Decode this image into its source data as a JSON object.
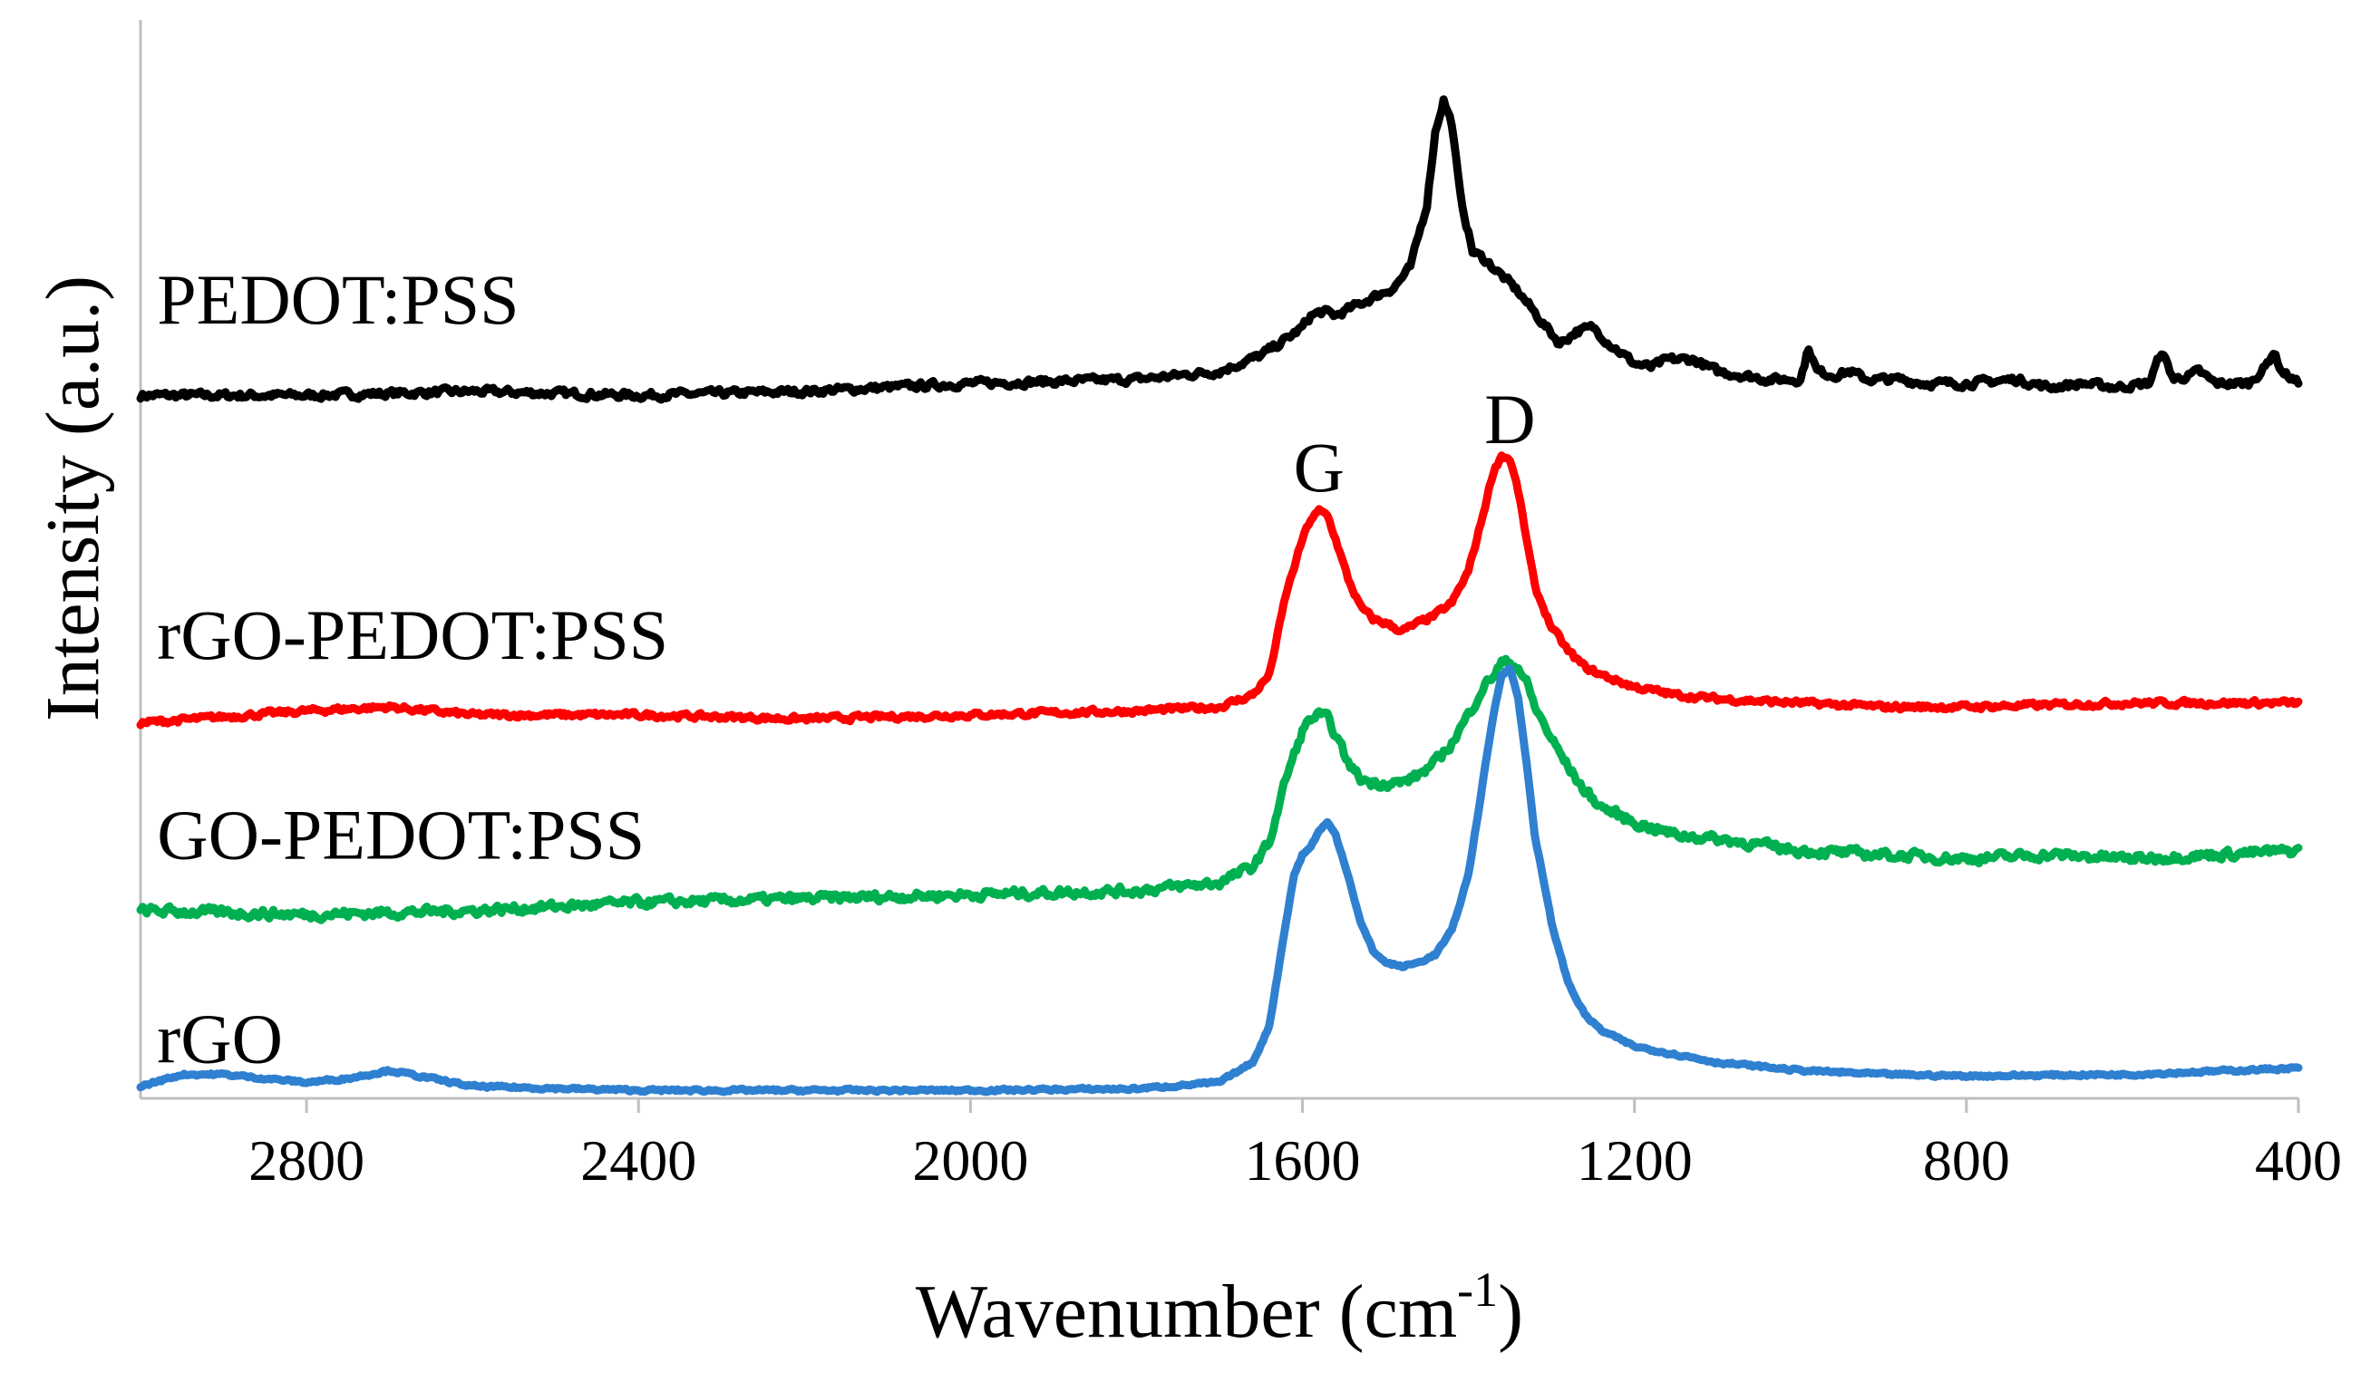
{
  "chart_data": {
    "type": "line",
    "title": "",
    "xlabel": "Wavenumber (cm",
    "xlabel_sup": "-1",
    "xlabel_close": ")",
    "ylabel": "Intensity (a.u.)",
    "xlim": [
      3000,
      400
    ],
    "ylim": [
      0,
      13.5
    ],
    "x_reversed": true,
    "xticks": [
      2800,
      2400,
      2000,
      1600,
      1200,
      800,
      400
    ],
    "xtick_labels": [
      "2800",
      "2400",
      "2000",
      "1600",
      "1200",
      "800",
      "400"
    ],
    "grid": false,
    "peak_annotations": [
      {
        "text": "G",
        "x": 1580,
        "y": 7.6
      },
      {
        "text": "D",
        "x": 1350,
        "y": 8.2
      }
    ],
    "series": [
      {
        "name": "PEDOT:PSS",
        "color": "#000000",
        "label_x": 2980,
        "label_y": 9.7,
        "noise": 0.08,
        "x": [
          3000,
          2800,
          2600,
          2400,
          2200,
          2000,
          1800,
          1700,
          1650,
          1620,
          1600,
          1590,
          1575,
          1560,
          1540,
          1510,
          1490,
          1470,
          1450,
          1440,
          1430,
          1420,
          1410,
          1395,
          1380,
          1360,
          1340,
          1310,
          1290,
          1270,
          1250,
          1230,
          1200,
          1180,
          1160,
          1130,
          1100,
          1070,
          1040,
          1000,
          990,
          980,
          960,
          940,
          920,
          880,
          850,
          800,
          740,
          700,
          660,
          620,
          580,
          565,
          550,
          530,
          520,
          500,
          460,
          440,
          430,
          420,
          400
        ],
        "y": [
          8.8,
          8.8,
          8.85,
          8.8,
          8.85,
          8.95,
          9.0,
          9.1,
          9.3,
          9.5,
          9.65,
          9.8,
          9.85,
          9.8,
          9.9,
          10.05,
          10.15,
          10.4,
          11.2,
          12.1,
          12.5,
          12.2,
          11.3,
          10.6,
          10.5,
          10.3,
          10.1,
          9.7,
          9.45,
          9.6,
          9.65,
          9.45,
          9.2,
          9.15,
          9.25,
          9.25,
          9.1,
          9.05,
          9.0,
          9.0,
          9.4,
          9.1,
          9.05,
          9.1,
          9.0,
          9.0,
          8.95,
          8.95,
          9.0,
          8.9,
          8.95,
          8.9,
          8.95,
          9.35,
          9.0,
          9.05,
          9.1,
          8.95,
          8.95,
          9.15,
          9.35,
          9.1,
          8.95
        ]
      },
      {
        "name": "rGO-PEDOT:PSS",
        "color": "#ff0000",
        "label_x": 2980,
        "label_y": 5.5,
        "noise": 0.06,
        "x": [
          3000,
          2800,
          2700,
          2600,
          2400,
          2200,
          2000,
          1800,
          1700,
          1660,
          1640,
          1620,
          1600,
          1590,
          1580,
          1570,
          1560,
          1545,
          1530,
          1515,
          1500,
          1480,
          1460,
          1440,
          1420,
          1400,
          1385,
          1370,
          1360,
          1350,
          1340,
          1330,
          1320,
          1300,
          1280,
          1260,
          1240,
          1200,
          1150,
          1100,
          1000,
          900,
          800,
          600,
          400
        ],
        "y": [
          4.7,
          4.85,
          4.9,
          4.8,
          4.8,
          4.75,
          4.8,
          4.85,
          4.9,
          5.05,
          5.3,
          6.3,
          7.0,
          7.25,
          7.35,
          7.3,
          7.0,
          6.5,
          6.15,
          6.0,
          5.95,
          5.85,
          5.95,
          6.05,
          6.2,
          6.6,
          7.2,
          7.85,
          8.05,
          8.0,
          7.6,
          7.0,
          6.4,
          5.9,
          5.6,
          5.4,
          5.3,
          5.15,
          5.05,
          5.0,
          4.95,
          4.9,
          4.9,
          4.95,
          4.95
        ]
      },
      {
        "name": "GO-PEDOT:PSS",
        "color": "#00b050",
        "label_x": 2980,
        "label_y": 3.0,
        "noise": 0.1,
        "x": [
          3000,
          2800,
          2600,
          2400,
          2200,
          2000,
          1800,
          1700,
          1660,
          1640,
          1620,
          1600,
          1590,
          1580,
          1570,
          1560,
          1545,
          1530,
          1515,
          1500,
          1480,
          1460,
          1440,
          1420,
          1400,
          1385,
          1370,
          1360,
          1350,
          1340,
          1330,
          1320,
          1300,
          1280,
          1260,
          1240,
          1200,
          1150,
          1100,
          1000,
          900,
          800,
          700,
          600,
          500,
          400
        ],
        "y": [
          2.35,
          2.3,
          2.35,
          2.45,
          2.5,
          2.55,
          2.6,
          2.7,
          2.9,
          3.2,
          4.0,
          4.6,
          4.75,
          4.8,
          4.75,
          4.55,
          4.2,
          4.0,
          3.95,
          3.95,
          3.95,
          4.05,
          4.2,
          4.45,
          4.8,
          5.1,
          5.3,
          5.45,
          5.45,
          5.4,
          5.2,
          4.9,
          4.5,
          4.15,
          3.85,
          3.65,
          3.45,
          3.3,
          3.25,
          3.1,
          3.05,
          3.0,
          3.05,
          3.0,
          3.05,
          3.1
        ]
      },
      {
        "name": "rGO",
        "color": "#2f80d0",
        "label_x": 2980,
        "label_y": 0.45,
        "noise": 0.03,
        "x": [
          3000,
          2950,
          2900,
          2850,
          2800,
          2750,
          2700,
          2650,
          2600,
          2400,
          2200,
          2000,
          1800,
          1700,
          1660,
          1640,
          1620,
          1610,
          1600,
          1590,
          1580,
          1570,
          1560,
          1545,
          1530,
          1515,
          1500,
          1480,
          1460,
          1440,
          1420,
          1400,
          1385,
          1370,
          1360,
          1350,
          1340,
          1330,
          1320,
          1300,
          1280,
          1260,
          1240,
          1200,
          1150,
          1100,
          1000,
          900,
          800,
          600,
          400
        ],
        "y": [
          0.15,
          0.3,
          0.3,
          0.25,
          0.2,
          0.25,
          0.35,
          0.25,
          0.15,
          0.1,
          0.1,
          0.1,
          0.12,
          0.2,
          0.45,
          0.9,
          2.2,
          2.8,
          3.05,
          3.15,
          3.35,
          3.45,
          3.3,
          2.8,
          2.2,
          1.85,
          1.7,
          1.65,
          1.7,
          1.8,
          2.1,
          2.8,
          3.8,
          4.8,
          5.3,
          5.4,
          5.0,
          4.2,
          3.3,
          2.2,
          1.45,
          1.05,
          0.85,
          0.65,
          0.55,
          0.45,
          0.35,
          0.3,
          0.28,
          0.3,
          0.38
        ]
      }
    ]
  }
}
